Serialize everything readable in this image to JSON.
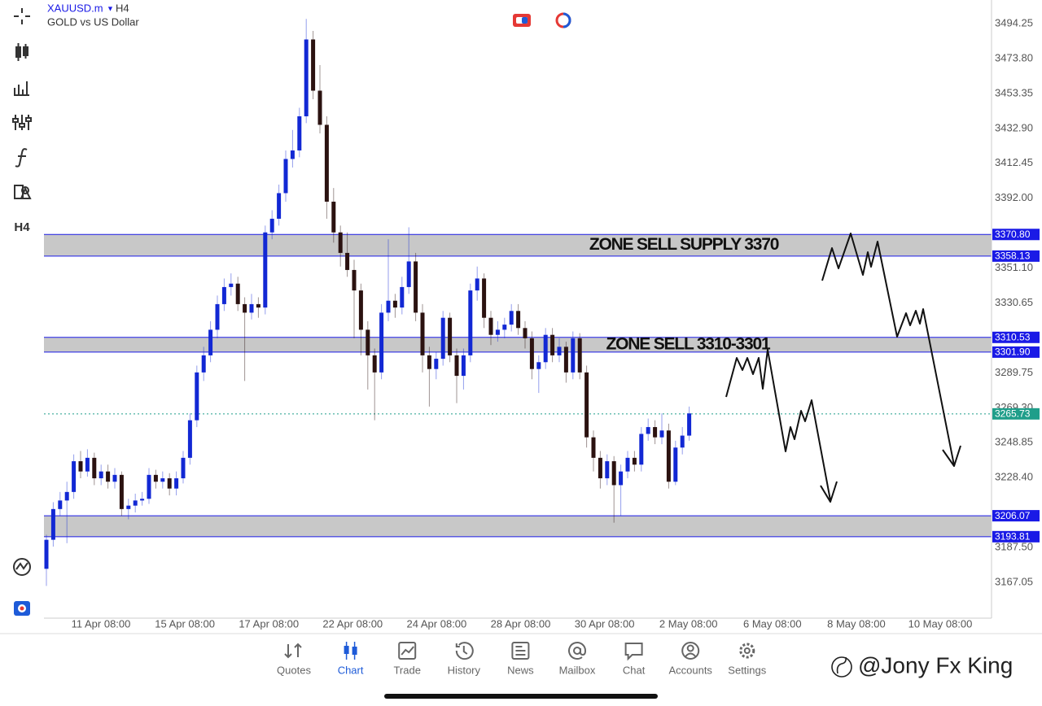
{
  "header": {
    "symbol": "XAUUSD.m",
    "timeframe": "H4",
    "description": "GOLD vs US Dollar"
  },
  "toolbar": {
    "timeframe": "H4"
  },
  "chart_data": {
    "type": "candlestick",
    "bull_color": "#1228d4",
    "bear_color": "#2b1210",
    "ylim": [
      3146.1,
      3508.1
    ],
    "yticks": [
      {
        "value": 3494.25,
        "label": "3494.25"
      },
      {
        "value": 3473.8,
        "label": "3473.80"
      },
      {
        "value": 3453.35,
        "label": "3453.35"
      },
      {
        "value": 3432.9,
        "label": "3432.90"
      },
      {
        "value": 3412.45,
        "label": "3412.45"
      },
      {
        "value": 3392,
        "label": "3392.00"
      },
      {
        "value": 3351.1,
        "label": "3351.10"
      },
      {
        "value": 3330.65,
        "label": "3330.65"
      },
      {
        "value": 3289.75,
        "label": "3289.75"
      },
      {
        "value": 3269.3,
        "label": "3269.30"
      },
      {
        "value": 3248.85,
        "label": "3248.85"
      },
      {
        "value": 3228.4,
        "label": "3228.40"
      },
      {
        "value": 3187.5,
        "label": "3187.50"
      },
      {
        "value": 3167.05,
        "label": "3167.05"
      }
    ],
    "x_labels": [
      "11 Apr 08:00",
      "15 Apr 08:00",
      "17 Apr 08:00",
      "22 Apr 08:00",
      "24 Apr 08:00",
      "28 Apr 08:00",
      "30 Apr 08:00",
      "2 May 08:00",
      "6 May 08:00",
      "8 May 08:00",
      "10 May 08:00"
    ],
    "zones": [
      {
        "label": "ZONE SELL SUPPLY 3370",
        "top": {
          "value": 3370.8,
          "label": "3370.80"
        },
        "bottom": {
          "value": 3358.13,
          "label": "3358.13"
        }
      },
      {
        "label": "ZONE SELL 3310-3301",
        "top": {
          "value": 3310.53,
          "label": "3310.53"
        },
        "bottom": {
          "value": 3301.9,
          "label": "3301.90"
        }
      },
      {
        "top": {
          "value": 3206.07,
          "label": "3206.07"
        },
        "bottom": {
          "value": 3193.81,
          "label": "3193.81"
        }
      }
    ],
    "zone_color": "#c8c8c8",
    "level_color": "#1a1ae6",
    "current_price": {
      "value": 3265.73,
      "label": "3265.73"
    },
    "current_color": "#1f9e8a",
    "candles": [
      [
        3175,
        3195,
        3165,
        3192
      ],
      [
        3192,
        3214,
        3188,
        3210
      ],
      [
        3210,
        3220,
        3206,
        3215
      ],
      [
        3215,
        3226,
        3190,
        3220
      ],
      [
        3220,
        3242,
        3216,
        3238
      ],
      [
        3238,
        3244,
        3228,
        3232
      ],
      [
        3232,
        3245,
        3229,
        3240
      ],
      [
        3240,
        3243,
        3224,
        3228
      ],
      [
        3228,
        3236,
        3224,
        3232
      ],
      [
        3232,
        3236,
        3222,
        3226
      ],
      [
        3226,
        3234,
        3222,
        3230
      ],
      [
        3230,
        3232,
        3206,
        3210
      ],
      [
        3210,
        3216,
        3204,
        3212
      ],
      [
        3212,
        3219,
        3208,
        3215
      ],
      [
        3215,
        3220,
        3212,
        3216
      ],
      [
        3216,
        3234,
        3213,
        3230
      ],
      [
        3230,
        3233,
        3222,
        3226
      ],
      [
        3226,
        3232,
        3222,
        3228
      ],
      [
        3228,
        3231,
        3218,
        3222
      ],
      [
        3222,
        3232,
        3218,
        3228
      ],
      [
        3228,
        3244,
        3225,
        3240
      ],
      [
        3240,
        3266,
        3236,
        3262
      ],
      [
        3262,
        3294,
        3258,
        3290
      ],
      [
        3290,
        3305,
        3285,
        3300
      ],
      [
        3300,
        3320,
        3296,
        3315
      ],
      [
        3315,
        3335,
        3310,
        3330
      ],
      [
        3330,
        3345,
        3326,
        3340
      ],
      [
        3340,
        3348,
        3335,
        3342
      ],
      [
        3342,
        3346,
        3326,
        3330
      ],
      [
        3330,
        3334,
        3285,
        3325
      ],
      [
        3325,
        3336,
        3321,
        3330
      ],
      [
        3330,
        3334,
        3322,
        3328
      ],
      [
        3328,
        3376,
        3324,
        3372
      ],
      [
        3372,
        3385,
        3368,
        3380
      ],
      [
        3380,
        3400,
        3376,
        3395
      ],
      [
        3395,
        3420,
        3390,
        3415
      ],
      [
        3415,
        3432,
        3410,
        3420
      ],
      [
        3420,
        3445,
        3416,
        3440
      ],
      [
        3440,
        3497,
        3436,
        3485
      ],
      [
        3485,
        3490,
        3450,
        3455
      ],
      [
        3455,
        3470,
        3430,
        3435
      ],
      [
        3435,
        3440,
        3380,
        3390
      ],
      [
        3390,
        3398,
        3366,
        3372
      ],
      [
        3372,
        3376,
        3352,
        3360
      ],
      [
        3360,
        3372,
        3346,
        3350
      ],
      [
        3350,
        3356,
        3310,
        3338
      ],
      [
        3338,
        3342,
        3300,
        3315
      ],
      [
        3315,
        3320,
        3280,
        3300
      ],
      [
        3300,
        3304,
        3262,
        3290
      ],
      [
        3290,
        3330,
        3286,
        3325
      ],
      [
        3325,
        3368,
        3320,
        3332
      ],
      [
        3332,
        3336,
        3322,
        3328
      ],
      [
        3328,
        3346,
        3324,
        3340
      ],
      [
        3340,
        3375,
        3336,
        3355
      ],
      [
        3355,
        3360,
        3320,
        3325
      ],
      [
        3325,
        3330,
        3290,
        3300
      ],
      [
        3300,
        3305,
        3270,
        3292
      ],
      [
        3292,
        3302,
        3286,
        3298
      ],
      [
        3298,
        3326,
        3294,
        3322
      ],
      [
        3322,
        3325,
        3296,
        3300
      ],
      [
        3300,
        3304,
        3272,
        3288
      ],
      [
        3288,
        3304,
        3280,
        3300
      ],
      [
        3300,
        3342,
        3296,
        3338
      ],
      [
        3338,
        3352,
        3332,
        3345
      ],
      [
        3345,
        3348,
        3316,
        3322
      ],
      [
        3322,
        3326,
        3306,
        3312
      ],
      [
        3312,
        3320,
        3308,
        3315
      ],
      [
        3315,
        3322,
        3310,
        3318
      ],
      [
        3318,
        3330,
        3314,
        3326
      ],
      [
        3326,
        3330,
        3312,
        3316
      ],
      [
        3316,
        3320,
        3304,
        3310
      ],
      [
        3310,
        3314,
        3286,
        3292
      ],
      [
        3292,
        3300,
        3278,
        3296
      ],
      [
        3296,
        3316,
        3292,
        3312
      ],
      [
        3312,
        3316,
        3296,
        3300
      ],
      [
        3300,
        3310,
        3296,
        3305
      ],
      [
        3305,
        3308,
        3284,
        3290
      ],
      [
        3290,
        3314,
        3286,
        3310
      ],
      [
        3310,
        3313,
        3286,
        3290
      ],
      [
        3290,
        3294,
        3246,
        3252
      ],
      [
        3252,
        3256,
        3232,
        3240
      ],
      [
        3240,
        3244,
        3222,
        3228
      ],
      [
        3228,
        3242,
        3224,
        3238
      ],
      [
        3238,
        3241,
        3202,
        3224
      ],
      [
        3224,
        3236,
        3206,
        3232
      ],
      [
        3232,
        3244,
        3228,
        3240
      ],
      [
        3240,
        3244,
        3232,
        3236
      ],
      [
        3236,
        3258,
        3232,
        3254
      ],
      [
        3254,
        3263,
        3250,
        3258
      ],
      [
        3258,
        3262,
        3248,
        3252
      ],
      [
        3252,
        3266,
        3248,
        3256
      ],
      [
        3256,
        3260,
        3222,
        3226
      ],
      [
        3226,
        3250,
        3224,
        3246
      ],
      [
        3246,
        3258,
        3242,
        3253
      ],
      [
        3253,
        3270,
        3250,
        3266
      ]
    ]
  },
  "tabs": [
    {
      "label": "Quotes"
    },
    {
      "label": "Chart",
      "active": true
    },
    {
      "label": "Trade"
    },
    {
      "label": "History"
    },
    {
      "label": "News"
    },
    {
      "label": "Mailbox"
    },
    {
      "label": "Chat"
    },
    {
      "label": "Accounts"
    },
    {
      "label": "Settings"
    }
  ],
  "watermark": "@Jony Fx King"
}
